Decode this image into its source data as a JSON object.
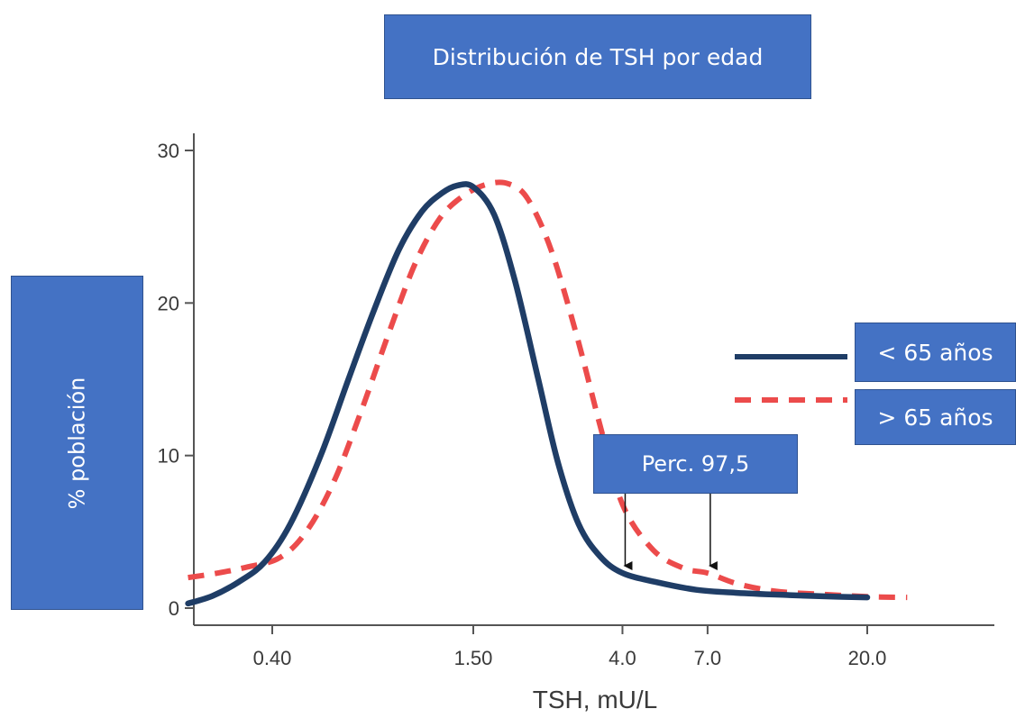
{
  "chart_data": {
    "type": "line",
    "title": "Distribución de TSH por edad",
    "xlabel": "TSH, mU/L",
    "ylabel": "% población",
    "x_scale": "log",
    "ylim": [
      0,
      30
    ],
    "x_tick_labels": [
      "0.40",
      "1.50",
      "4.0",
      "7.0",
      "20.0"
    ],
    "y_ticks": [
      0,
      10,
      20,
      30
    ],
    "grid": false,
    "legend": "right",
    "series": [
      {
        "name": "< 65 años",
        "style": "solid",
        "color": "#1f3d66",
        "points": [
          [
            0.23,
            0.3
          ],
          [
            0.27,
            0.8
          ],
          [
            0.32,
            1.7
          ],
          [
            0.38,
            3.0
          ],
          [
            0.45,
            5.5
          ],
          [
            0.55,
            10.0
          ],
          [
            0.66,
            15.0
          ],
          [
            0.78,
            19.5
          ],
          [
            0.92,
            23.5
          ],
          [
            1.07,
            26.0
          ],
          [
            1.22,
            27.2
          ],
          [
            1.35,
            27.7
          ],
          [
            1.5,
            27.6
          ],
          [
            1.72,
            25.8
          ],
          [
            1.97,
            21.5
          ],
          [
            2.3,
            15.0
          ],
          [
            2.62,
            9.5
          ],
          [
            3.0,
            5.5
          ],
          [
            3.45,
            3.4
          ],
          [
            4.0,
            2.3
          ],
          [
            5.0,
            1.7
          ],
          [
            6.5,
            1.2
          ],
          [
            8.5,
            1.0
          ],
          [
            12.0,
            0.85
          ],
          [
            16.0,
            0.75
          ],
          [
            20.0,
            0.7
          ]
        ]
      },
      {
        "name": "> 65 años",
        "style": "dashed",
        "color": "#ec4b4b",
        "points": [
          [
            0.23,
            2.0
          ],
          [
            0.28,
            2.3
          ],
          [
            0.34,
            2.7
          ],
          [
            0.42,
            3.3
          ],
          [
            0.5,
            5.0
          ],
          [
            0.6,
            8.3
          ],
          [
            0.72,
            13.0
          ],
          [
            0.86,
            18.0
          ],
          [
            1.02,
            22.5
          ],
          [
            1.2,
            25.5
          ],
          [
            1.4,
            27.0
          ],
          [
            1.65,
            27.8
          ],
          [
            1.9,
            27.8
          ],
          [
            2.15,
            26.8
          ],
          [
            2.5,
            23.5
          ],
          [
            2.95,
            18.0
          ],
          [
            3.45,
            12.0
          ],
          [
            4.0,
            6.8
          ],
          [
            4.9,
            3.8
          ],
          [
            6.0,
            2.6
          ],
          [
            7.0,
            2.3
          ],
          [
            8.5,
            1.6
          ],
          [
            11.0,
            1.1
          ],
          [
            15.0,
            0.9
          ],
          [
            20.0,
            0.75
          ],
          [
            26.0,
            0.7
          ]
        ]
      }
    ],
    "annotation": {
      "label": "Perc.  97,5",
      "arrows_at_x": [
        4.0,
        7.0
      ]
    }
  }
}
